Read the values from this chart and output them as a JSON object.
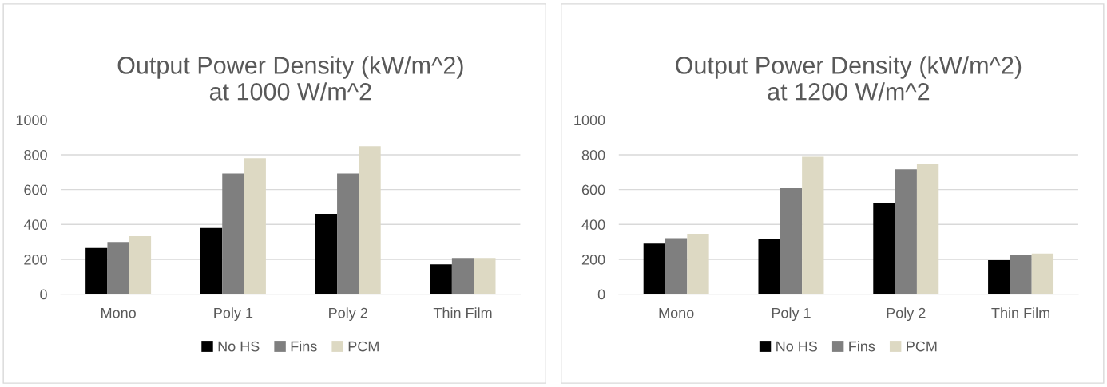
{
  "chart_data": [
    {
      "type": "bar",
      "title": "Output Power Density (kW/m^2)\nat 1000 W/m^2",
      "categories": [
        "Mono",
        "Poly 1",
        "Poly 2",
        "Thin Film"
      ],
      "series": [
        {
          "name": "No HS",
          "color": "#000000",
          "values": [
            265,
            380,
            461,
            171
          ]
        },
        {
          "name": "Fins",
          "color": "#7f7f7f",
          "values": [
            300,
            692,
            692,
            208
          ]
        },
        {
          "name": "PCM",
          "color": "#ddd9c3",
          "values": [
            333,
            780,
            849,
            208
          ]
        }
      ],
      "ylim": [
        0,
        1000
      ],
      "yticks": [
        0,
        200,
        400,
        600,
        800,
        1000
      ],
      "grid": "y",
      "legend": "bottom"
    },
    {
      "type": "bar",
      "title": "Output Power Density (kW/m^2)\nat 1200 W/m^2",
      "categories": [
        "Mono",
        "Poly 1",
        "Poly 2",
        "Thin Film"
      ],
      "series": [
        {
          "name": "No HS",
          "color": "#000000",
          "values": [
            290,
            317,
            521,
            195
          ]
        },
        {
          "name": "Fins",
          "color": "#7f7f7f",
          "values": [
            321,
            609,
            716,
            224
          ]
        },
        {
          "name": "PCM",
          "color": "#ddd9c3",
          "values": [
            346,
            788,
            749,
            233
          ]
        }
      ],
      "ylim": [
        0,
        1000
      ],
      "yticks": [
        0,
        200,
        400,
        600,
        800,
        1000
      ],
      "grid": "y",
      "legend": "bottom"
    }
  ]
}
